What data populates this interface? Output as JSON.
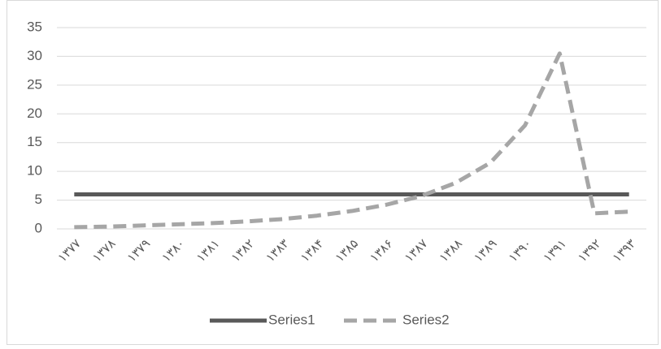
{
  "chart_data": {
    "type": "line",
    "categories": [
      "۱۳۷۷",
      "۱۳۷۸",
      "۱۳۷۹",
      "۱۳۸۰",
      "۱۳۸۱",
      "۱۳۸۲",
      "۱۳۸۳",
      "۱۳۸۴",
      "۱۳۸۵",
      "۱۳۸۶",
      "۱۳۸۷",
      "۱۳۸۸",
      "۱۳۸۹",
      "۱۳۹۰",
      "۱۳۹۱",
      "۱۳۹۲",
      "۱۳۹۳"
    ],
    "series": [
      {
        "name": "Series1",
        "color": "#595959",
        "dash": false,
        "values": [
          6,
          6,
          6,
          6,
          6,
          6,
          6,
          6,
          6,
          6,
          6,
          6,
          6,
          6,
          6,
          6,
          6
        ]
      },
      {
        "name": "Series2",
        "color": "#a6a6a6",
        "dash": true,
        "values": [
          0.3,
          0.4,
          0.6,
          0.8,
          1.0,
          1.3,
          1.7,
          2.3,
          3.1,
          4.2,
          5.7,
          8,
          11.5,
          18,
          30.5,
          2.7,
          3
        ]
      }
    ],
    "ylim": [
      0,
      35
    ],
    "yticks": [
      0,
      5,
      10,
      15,
      20,
      25,
      30,
      35
    ],
    "grid": true,
    "legend": "bottom"
  }
}
